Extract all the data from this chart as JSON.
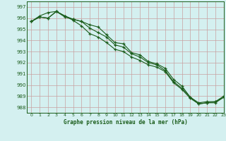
{
  "title": "Graphe pression niveau de la mer (hPa)",
  "bg_color": "#d4f0f0",
  "plot_bg_color": "#d4f0f0",
  "grid_color": "#c8a0a0",
  "line_color": "#1a5c1a",
  "marker": "+",
  "xlim": [
    -0.5,
    23
  ],
  "ylim": [
    987.5,
    997.5
  ],
  "yticks": [
    988,
    989,
    990,
    991,
    992,
    993,
    994,
    995,
    996,
    997
  ],
  "xticks": [
    0,
    1,
    2,
    3,
    4,
    5,
    6,
    7,
    8,
    9,
    10,
    11,
    12,
    13,
    14,
    15,
    16,
    17,
    18,
    19,
    20,
    21,
    22,
    23
  ],
  "series": [
    [
      995.7,
      996.1,
      996.0,
      996.6,
      996.1,
      995.9,
      995.7,
      995.4,
      995.2,
      994.5,
      993.8,
      993.7,
      992.9,
      992.7,
      992.1,
      991.9,
      991.5,
      990.5,
      989.9,
      988.9,
      988.4,
      988.5,
      988.5,
      989.0
    ],
    [
      995.7,
      996.2,
      996.5,
      996.6,
      996.2,
      995.9,
      995.7,
      995.1,
      994.7,
      994.3,
      993.6,
      993.4,
      992.8,
      992.5,
      992.0,
      991.8,
      991.3,
      990.3,
      989.7,
      988.9,
      988.3,
      988.4,
      988.5,
      988.9
    ],
    [
      995.7,
      996.1,
      996.0,
      996.6,
      996.2,
      995.8,
      995.3,
      994.6,
      994.3,
      993.8,
      993.2,
      993.0,
      992.5,
      992.2,
      991.8,
      991.6,
      991.2,
      990.2,
      989.6,
      988.8,
      988.3,
      988.4,
      988.4,
      988.9
    ]
  ]
}
